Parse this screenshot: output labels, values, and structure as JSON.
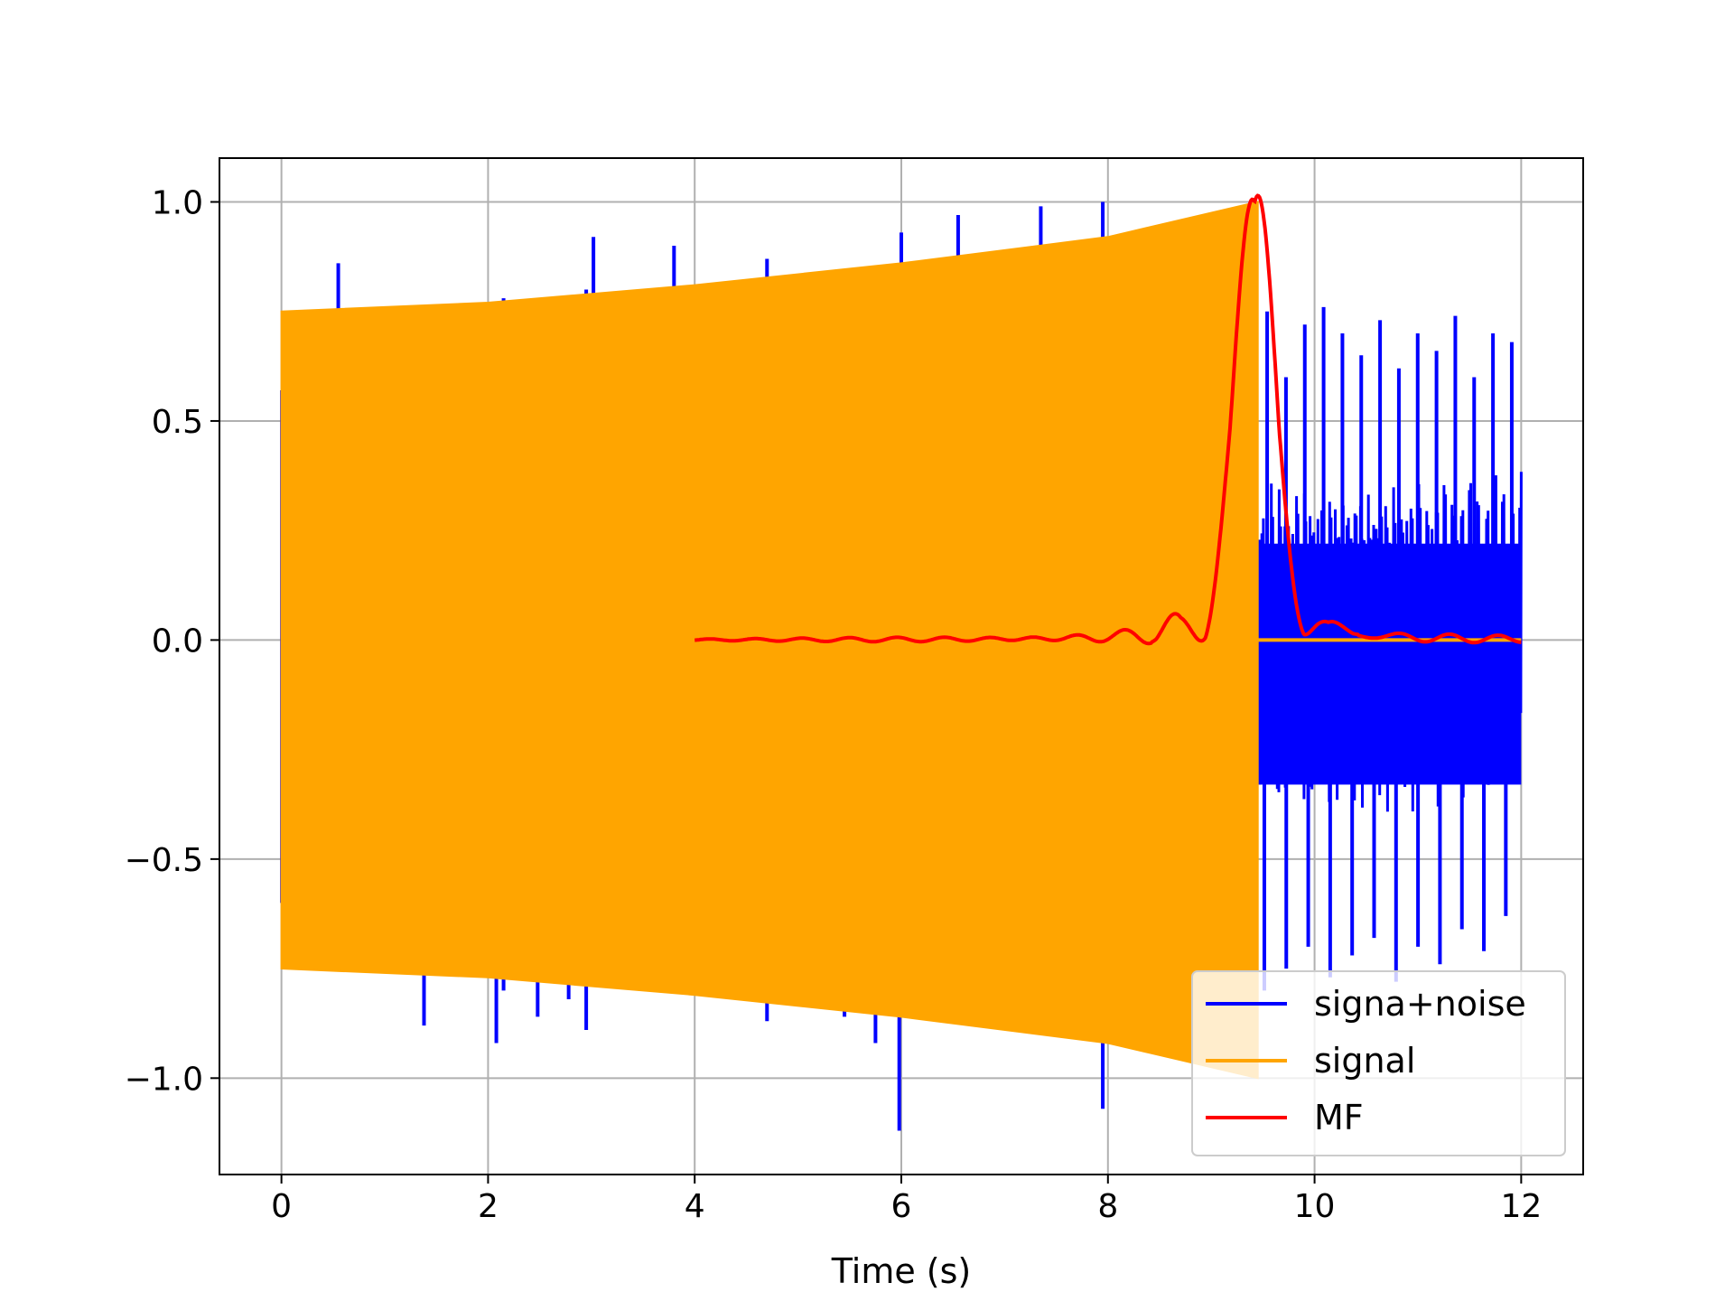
{
  "chart_data": {
    "type": "line",
    "title": "",
    "xlabel": "Time (s)",
    "ylabel": "",
    "xlim": [
      -0.6,
      12.6
    ],
    "ylim": [
      -1.22,
      1.1
    ],
    "grid": true,
    "legend_position": "lower-right",
    "x_ticks": [
      0,
      2,
      4,
      6,
      8,
      10,
      12
    ],
    "x_tick_labels": [
      "0",
      "2",
      "4",
      "6",
      "8",
      "10",
      "12"
    ],
    "y_ticks": [
      1.0,
      0.5,
      0.0,
      -0.5,
      -1.0
    ],
    "y_tick_labels": [
      "1.0",
      "0.5",
      "0.0",
      "−0.5",
      "−1.0"
    ],
    "series": [
      {
        "name": "signa+noise",
        "color": "#0000ff",
        "spikes": [
          {
            "x": 0.55,
            "y": 0.86
          },
          {
            "x": 2.15,
            "y": 0.78
          },
          {
            "x": 2.95,
            "y": 0.8
          },
          {
            "x": 3.02,
            "y": 0.92
          },
          {
            "x": 3.8,
            "y": 0.9
          },
          {
            "x": 4.7,
            "y": 0.87
          },
          {
            "x": 6.0,
            "y": 0.93
          },
          {
            "x": 6.55,
            "y": 0.97
          },
          {
            "x": 7.35,
            "y": 0.99
          },
          {
            "x": 7.95,
            "y": 1.0
          },
          {
            "x": 1.38,
            "y": -0.88
          },
          {
            "x": 2.08,
            "y": -0.92
          },
          {
            "x": 2.15,
            "y": -0.8
          },
          {
            "x": 2.48,
            "y": -0.86
          },
          {
            "x": 2.78,
            "y": -0.82
          },
          {
            "x": 2.95,
            "y": -0.89
          },
          {
            "x": 4.7,
            "y": -0.87
          },
          {
            "x": 5.45,
            "y": -0.86
          },
          {
            "x": 5.75,
            "y": -0.92
          },
          {
            "x": 5.98,
            "y": -1.12
          },
          {
            "x": 7.95,
            "y": -1.07
          }
        ],
        "noise_x_range": [
          9.45,
          12.0
        ],
        "noise_upper_peaks": [
          0.75,
          0.6,
          0.72,
          0.76,
          0.7,
          0.65,
          0.73,
          0.62,
          0.7,
          0.66,
          0.74,
          0.6,
          0.7,
          0.68
        ],
        "noise_lower_peaks": [
          -0.8,
          -0.75,
          -0.7,
          -0.77,
          -0.72,
          -0.68,
          -0.78,
          -0.7,
          -0.74,
          -0.66,
          -0.71,
          -0.63
        ],
        "noise_envelope": 0.4
      },
      {
        "name": "signal",
        "color": "#ffa500",
        "envelope": [
          {
            "x": 0.0,
            "y": 0.75
          },
          {
            "x": 2.0,
            "y": 0.77
          },
          {
            "x": 4.0,
            "y": 0.81
          },
          {
            "x": 6.0,
            "y": 0.86
          },
          {
            "x": 8.0,
            "y": 0.92
          },
          {
            "x": 9.45,
            "y": 1.0
          }
        ],
        "zero_line_x": [
          9.45,
          12.0
        ]
      },
      {
        "name": "MF",
        "color": "#ff0000",
        "x_range": [
          4.0,
          12.0
        ],
        "peak": {
          "x": 9.42,
          "y": 1.0
        }
      }
    ]
  }
}
